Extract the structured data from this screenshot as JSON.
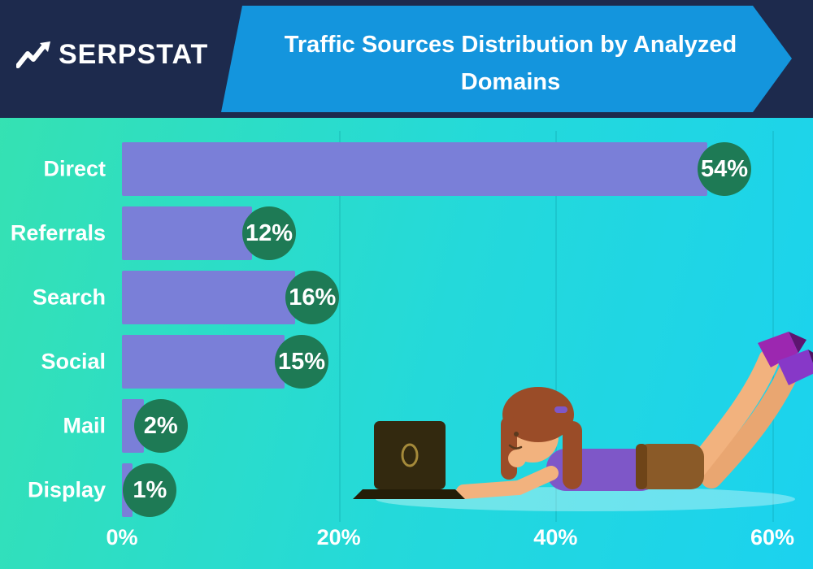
{
  "header": {
    "brand": "SERPSTAT",
    "title_line1": "Traffic Sources Distribution  by Analyzed",
    "title_line2": "Domains",
    "colors": {
      "bar_bg": "#1d2a4d",
      "ribbon_blue": "#1495dd"
    }
  },
  "chart_data": {
    "type": "bar",
    "orientation": "horizontal",
    "title": "Traffic Sources Distribution by Analyzed Domains",
    "categories": [
      "Direct",
      "Referrals",
      "Search",
      "Social",
      "Mail",
      "Display"
    ],
    "values": [
      54,
      12,
      16,
      15,
      2,
      1
    ],
    "value_labels": [
      "54%",
      "12%",
      "16%",
      "15%",
      "2%",
      "1%"
    ],
    "x_ticks": [
      {
        "label": "0%",
        "value": 0
      },
      {
        "label": "20%",
        "value": 20
      },
      {
        "label": "40%",
        "value": 40
      },
      {
        "label": "60%",
        "value": 60
      }
    ],
    "xlim": [
      0,
      60
    ],
    "grid": "vertical-lines-at-20-40-60",
    "legend": "none",
    "bar_color": "#7a7fd8",
    "badge_color": "#1e7a55",
    "label_color": "#ffffff"
  },
  "illustration": {
    "description": "person lying down working on laptop"
  }
}
